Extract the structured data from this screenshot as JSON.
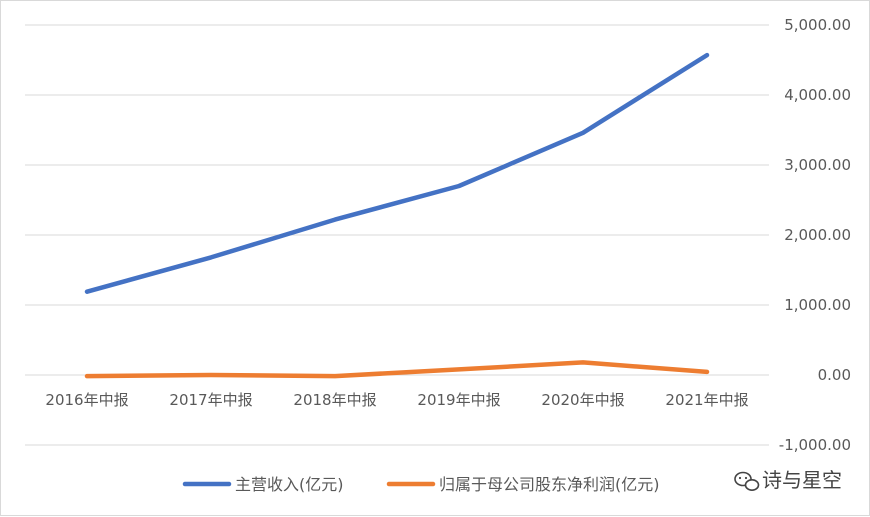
{
  "chart_data": {
    "type": "line",
    "categories": [
      "2016年中报",
      "2017年中报",
      "2018年中报",
      "2019年中报",
      "2020年中报",
      "2021年中报"
    ],
    "series": [
      {
        "name": "主营收入(亿元)",
        "color": "#4472C4",
        "values": [
          1190,
          1680,
          2220,
          2700,
          3460,
          4570
        ]
      },
      {
        "name": "归属于母公司股东净利润(亿元)",
        "color": "#ED7D31",
        "values": [
          -15,
          0,
          -15,
          80,
          180,
          45
        ]
      }
    ],
    "ylim": [
      -1000,
      5000
    ],
    "yticks": [
      {
        "value": 5000,
        "label": "5,000.00"
      },
      {
        "value": 4000,
        "label": "4,000.00"
      },
      {
        "value": 3000,
        "label": "3,000.00"
      },
      {
        "value": 2000,
        "label": "2,000.00"
      },
      {
        "value": 1000,
        "label": "1,000.00"
      },
      {
        "value": 0,
        "label": "0.00"
      },
      {
        "value": -1000,
        "label": "-1,000.00"
      }
    ],
    "y_axis_side": "right",
    "grid": true,
    "legend_position": "bottom",
    "title": "",
    "xlabel": "",
    "ylabel": ""
  },
  "watermark": {
    "text": "诗与星空",
    "icon": "wechat-icon"
  },
  "colors": {
    "grid": "#d9d9d9",
    "text": "#595959"
  }
}
